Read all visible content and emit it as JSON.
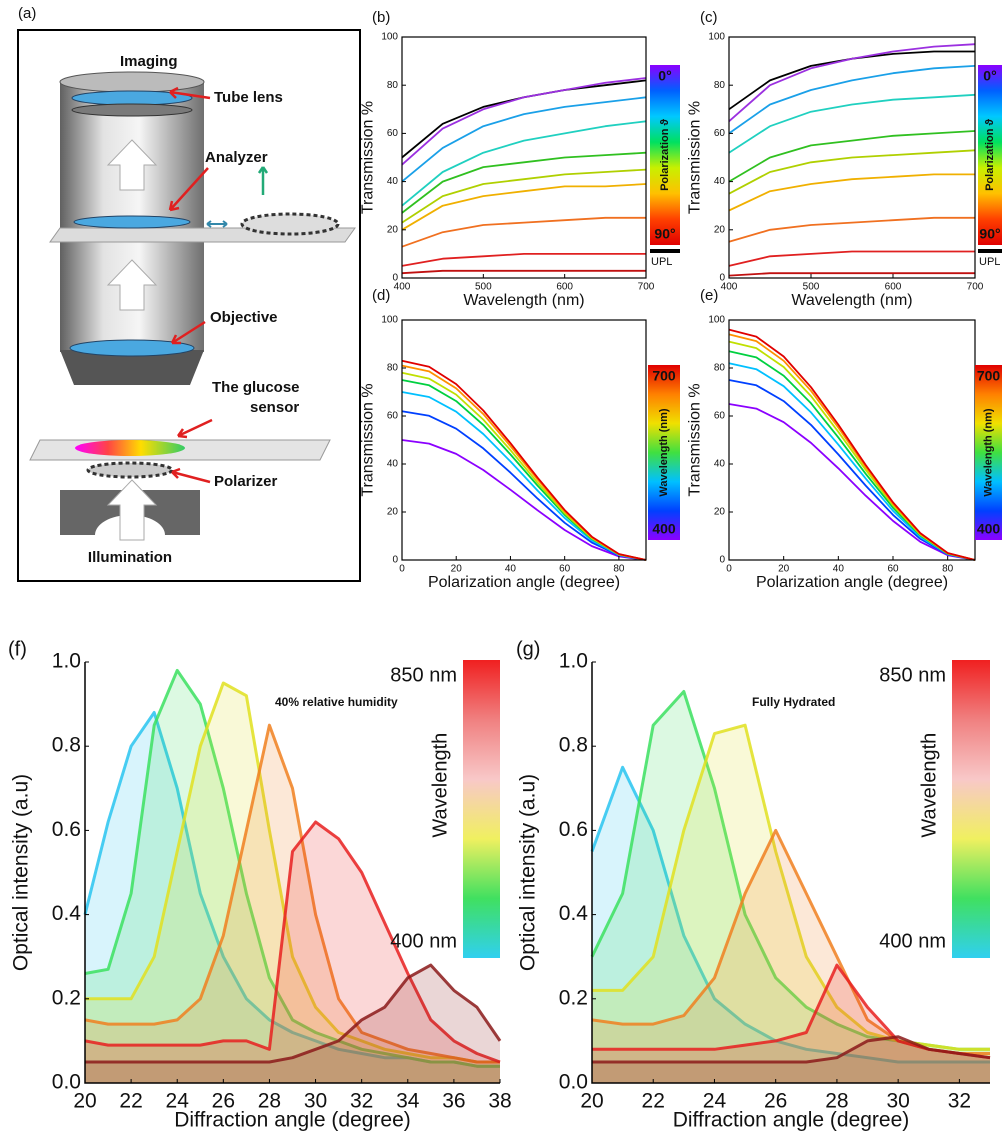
{
  "diagram": {
    "panel_label": "(a)",
    "imaging": "Imaging",
    "tube_lens": "Tube lens",
    "analyzer": "Analyzer",
    "objective": "Objective",
    "sensor": [
      "The glucose",
      "sensor"
    ],
    "polarizer": "Polarizer",
    "illumination": "Illumination"
  },
  "chart_data": [
    {
      "type": "line",
      "panel_label": "(b)",
      "x_label": "Wavelength (nm)",
      "y_label": "Transmission %",
      "x": [
        400,
        450,
        500,
        550,
        600,
        650,
        700
      ],
      "xlim": [
        400,
        700
      ],
      "xticks": [
        400,
        500,
        600,
        700
      ],
      "ylim": [
        0,
        100
      ],
      "yticks": [
        0,
        20,
        40,
        60,
        80,
        100
      ],
      "colorbar": {
        "top_label": "0°",
        "title": "Polarization ϑ",
        "bottom_label": "90°",
        "colors": [
          "#8b00ff",
          "#0060ff",
          "#00c8ff",
          "#00e060",
          "#c8f000",
          "#ffc000",
          "#ff4000",
          "#e00000"
        ]
      },
      "series": [
        {
          "name": "UPL",
          "color": "#000000",
          "values": [
            50,
            64,
            71,
            75,
            78,
            80,
            82
          ]
        },
        {
          "color": "#9b30e0",
          "values": [
            47,
            62,
            70,
            75,
            78,
            81,
            83
          ]
        },
        {
          "color": "#1aa0e8",
          "values": [
            40,
            54,
            63,
            68,
            71,
            73,
            75
          ]
        },
        {
          "color": "#20d0c0",
          "values": [
            30,
            44,
            52,
            57,
            60,
            63,
            65
          ]
        },
        {
          "color": "#30c020",
          "values": [
            27,
            40,
            46,
            48,
            50,
            51,
            52
          ]
        },
        {
          "color": "#b0d000",
          "values": [
            23,
            34,
            39,
            41,
            43,
            44,
            45
          ]
        },
        {
          "color": "#f0b000",
          "values": [
            20,
            30,
            34,
            36,
            38,
            38,
            39
          ]
        },
        {
          "color": "#f07020",
          "values": [
            13,
            19,
            22,
            23,
            24,
            25,
            25
          ]
        },
        {
          "color": "#e02020",
          "values": [
            5,
            8,
            9,
            10,
            10,
            10,
            10
          ]
        },
        {
          "color": "#c01010",
          "values": [
            2,
            3,
            3,
            3,
            3,
            3,
            3
          ]
        }
      ]
    },
    {
      "type": "line",
      "panel_label": "(c)",
      "x_label": "Wavelength (nm)",
      "y_label": "Transmission %",
      "x": [
        400,
        450,
        500,
        550,
        600,
        650,
        700
      ],
      "xlim": [
        400,
        700
      ],
      "xticks": [
        400,
        500,
        600,
        700
      ],
      "ylim": [
        0,
        100
      ],
      "yticks": [
        0,
        20,
        40,
        60,
        80,
        100
      ],
      "colorbar": {
        "top_label": "0°",
        "title": "Polarization ϑ",
        "bottom_label": "90°",
        "colors": [
          "#8b00ff",
          "#0060ff",
          "#00c8ff",
          "#00e060",
          "#c8f000",
          "#ffc000",
          "#ff4000",
          "#e00000"
        ]
      },
      "series": [
        {
          "name": "UPL",
          "color": "#000000",
          "values": [
            70,
            82,
            88,
            91,
            93,
            94,
            94
          ]
        },
        {
          "color": "#9b30e0",
          "values": [
            65,
            80,
            87,
            91,
            94,
            96,
            97
          ]
        },
        {
          "color": "#1aa0e8",
          "values": [
            60,
            72,
            78,
            82,
            85,
            87,
            88
          ]
        },
        {
          "color": "#20d0c0",
          "values": [
            52,
            63,
            69,
            72,
            74,
            75,
            76
          ]
        },
        {
          "color": "#30c020",
          "values": [
            40,
            50,
            55,
            57,
            59,
            60,
            61
          ]
        },
        {
          "color": "#b0d000",
          "values": [
            35,
            44,
            48,
            50,
            51,
            52,
            53
          ]
        },
        {
          "color": "#f0b000",
          "values": [
            28,
            36,
            39,
            41,
            42,
            43,
            43
          ]
        },
        {
          "color": "#f07020",
          "values": [
            15,
            20,
            22,
            23,
            24,
            25,
            25
          ]
        },
        {
          "color": "#e02020",
          "values": [
            5,
            9,
            10,
            11,
            11,
            11,
            11
          ]
        },
        {
          "color": "#c01010",
          "values": [
            1,
            2,
            2,
            2,
            2,
            2,
            2
          ]
        }
      ]
    },
    {
      "type": "line",
      "panel_label": "(d)",
      "x_label": "Polarization angle (degree)",
      "y_label": "Transmission %",
      "x": [
        0,
        10,
        20,
        30,
        40,
        50,
        60,
        70,
        80,
        90
      ],
      "xlim": [
        0,
        90
      ],
      "xticks": [
        0,
        20,
        40,
        60,
        80
      ],
      "ylim": [
        0,
        100
      ],
      "yticks": [
        0,
        20,
        40,
        60,
        80,
        100
      ],
      "colorbar": {
        "top_label": "700",
        "title": "Wavelength (nm)",
        "bottom_label": "400",
        "colors": [
          "#e00000",
          "#ff8000",
          "#f0e000",
          "#40e040",
          "#00c0ff",
          "#0040ff",
          "#8b00ff"
        ]
      },
      "series": [
        {
          "color": "#8b00ff",
          "values": [
            50,
            48.5,
            44.2,
            37.5,
            29.3,
            20.7,
            12.5,
            5.8,
            1.5,
            0
          ]
        },
        {
          "color": "#0040ff",
          "values": [
            62,
            60.1,
            54.7,
            46.5,
            36.4,
            25.6,
            15.5,
            7.3,
            1.9,
            0
          ]
        },
        {
          "color": "#00c0ff",
          "values": [
            70,
            67.9,
            61.8,
            52.5,
            41.1,
            28.9,
            17.5,
            8.2,
            2.1,
            0
          ]
        },
        {
          "color": "#00d040",
          "values": [
            75,
            72.8,
            66.2,
            56.3,
            44.0,
            31.0,
            18.8,
            8.8,
            2.3,
            0
          ]
        },
        {
          "color": "#c0e000",
          "values": [
            78,
            75.6,
            68.9,
            58.5,
            45.8,
            32.2,
            19.5,
            9.1,
            2.3,
            0
          ]
        },
        {
          "color": "#ff9000",
          "values": [
            81,
            78.6,
            71.5,
            60.8,
            47.5,
            33.5,
            20.3,
            9.5,
            2.4,
            0
          ]
        },
        {
          "color": "#e00000",
          "values": [
            83,
            80.5,
            73.3,
            62.3,
            48.7,
            34.3,
            20.8,
            9.7,
            2.5,
            0
          ]
        }
      ]
    },
    {
      "type": "line",
      "panel_label": "(e)",
      "x_label": "Polarization angle (degree)",
      "y_label": "Transmission %",
      "x": [
        0,
        10,
        20,
        30,
        40,
        50,
        60,
        70,
        80,
        90
      ],
      "xlim": [
        0,
        90
      ],
      "xticks": [
        0,
        20,
        40,
        60,
        80
      ],
      "ylim": [
        0,
        100
      ],
      "yticks": [
        0,
        20,
        40,
        60,
        80,
        100
      ],
      "colorbar": {
        "top_label": "700",
        "title": "Wavelength (nm)",
        "bottom_label": "400",
        "colors": [
          "#e00000",
          "#ff8000",
          "#f0e000",
          "#40e040",
          "#00c0ff",
          "#0040ff",
          "#8b00ff"
        ]
      },
      "series": [
        {
          "color": "#8b00ff",
          "values": [
            65,
            63.1,
            57.4,
            48.8,
            38.2,
            26.8,
            16.3,
            7.6,
            2.0,
            0
          ]
        },
        {
          "color": "#0040ff",
          "values": [
            75,
            72.8,
            66.2,
            56.3,
            44.0,
            31.0,
            18.8,
            8.8,
            2.3,
            0
          ]
        },
        {
          "color": "#00c0ff",
          "values": [
            82,
            79.5,
            72.4,
            61.5,
            48.1,
            33.9,
            20.5,
            9.6,
            2.5,
            0
          ]
        },
        {
          "color": "#00d040",
          "values": [
            87,
            84.4,
            76.8,
            65.3,
            51.1,
            35.9,
            21.8,
            10.2,
            2.6,
            0
          ]
        },
        {
          "color": "#c0e000",
          "values": [
            91,
            88.3,
            80.4,
            68.3,
            53.4,
            37.6,
            22.8,
            10.6,
            2.7,
            0
          ]
        },
        {
          "color": "#ff9000",
          "values": [
            94,
            91.2,
            83.0,
            70.5,
            55.2,
            38.8,
            23.5,
            11.0,
            2.8,
            0
          ]
        },
        {
          "color": "#e00000",
          "values": [
            96,
            93.1,
            84.8,
            72.0,
            56.4,
            39.6,
            24.0,
            11.2,
            2.9,
            0
          ]
        }
      ]
    },
    {
      "type": "area",
      "panel_label": "(f)",
      "x_label": "Diffraction angle (degree)",
      "y_label": "Optical intensity (a.u)",
      "annotation": "40% relative humidity",
      "x": [
        20,
        21,
        22,
        23,
        24,
        25,
        26,
        27,
        28,
        29,
        30,
        31,
        32,
        33,
        34,
        35,
        36,
        37,
        38
      ],
      "xlim": [
        20,
        38
      ],
      "xticks": [
        20,
        22,
        24,
        26,
        28,
        30,
        32,
        34,
        36,
        38
      ],
      "ylim": [
        0,
        1.0
      ],
      "yticks": [
        {
          "value": 0,
          "label": "0.0"
        },
        0.2,
        0.4,
        0.6,
        0.8,
        {
          "value": 1,
          "label": "1.0"
        }
      ],
      "colorbar": {
        "top_label": "850 nm",
        "title": "Wavelength",
        "bottom_label": "400 nm",
        "colors": [
          "#f02020",
          "#f08080",
          "#f8c8c8",
          "#f0f060",
          "#40e060",
          "#30d0f0"
        ]
      },
      "series": [
        {
          "color": "#29c4f0",
          "values": [
            0.4,
            0.62,
            0.8,
            0.88,
            0.7,
            0.45,
            0.3,
            0.2,
            0.15,
            0.12,
            0.1,
            0.08,
            0.07,
            0.06,
            0.06,
            0.05,
            0.05,
            0.04,
            0.04
          ]
        },
        {
          "color": "#3ce060",
          "values": [
            0.26,
            0.27,
            0.45,
            0.85,
            0.98,
            0.9,
            0.7,
            0.45,
            0.25,
            0.15,
            0.12,
            0.1,
            0.08,
            0.07,
            0.06,
            0.05,
            0.05,
            0.04,
            0.04
          ]
        },
        {
          "color": "#e0e020",
          "values": [
            0.2,
            0.2,
            0.2,
            0.3,
            0.55,
            0.8,
            0.95,
            0.92,
            0.6,
            0.3,
            0.18,
            0.12,
            0.1,
            0.08,
            0.07,
            0.06,
            0.06,
            0.05,
            0.05
          ]
        },
        {
          "color": "#f08020",
          "values": [
            0.15,
            0.14,
            0.14,
            0.14,
            0.15,
            0.2,
            0.35,
            0.6,
            0.85,
            0.7,
            0.4,
            0.2,
            0.12,
            0.1,
            0.08,
            0.07,
            0.06,
            0.05,
            0.05
          ]
        },
        {
          "color": "#e82020",
          "values": [
            0.1,
            0.09,
            0.09,
            0.09,
            0.09,
            0.09,
            0.1,
            0.1,
            0.08,
            0.55,
            0.62,
            0.58,
            0.5,
            0.38,
            0.26,
            0.15,
            0.1,
            0.07,
            0.05
          ]
        },
        {
          "color": "#8b1a1a",
          "values": [
            0.05,
            0.05,
            0.05,
            0.05,
            0.05,
            0.05,
            0.05,
            0.05,
            0.05,
            0.06,
            0.08,
            0.1,
            0.15,
            0.18,
            0.25,
            0.28,
            0.22,
            0.18,
            0.1
          ]
        }
      ]
    },
    {
      "type": "area",
      "panel_label": "(g)",
      "x_label": "Diffraction angle (degree)",
      "y_label": "Optical intensity (a.u)",
      "annotation": "Fully Hydrated",
      "x": [
        20,
        21,
        22,
        23,
        24,
        25,
        26,
        27,
        28,
        29,
        30,
        31,
        32,
        33
      ],
      "xlim": [
        20,
        33
      ],
      "xticks": [
        20,
        22,
        24,
        26,
        28,
        30,
        32
      ],
      "ylim": [
        0,
        1.0
      ],
      "yticks": [
        {
          "value": 0,
          "label": "0.0"
        },
        0.2,
        0.4,
        0.6,
        0.8,
        {
          "value": 1,
          "label": "1.0"
        }
      ],
      "colorbar": {
        "top_label": "850 nm",
        "title": "Wavelength",
        "bottom_label": "400 nm",
        "colors": [
          "#f02020",
          "#f08080",
          "#f8c8c8",
          "#f0f060",
          "#40e060",
          "#30d0f0"
        ]
      },
      "series": [
        {
          "color": "#29c4f0",
          "values": [
            0.55,
            0.75,
            0.6,
            0.35,
            0.2,
            0.14,
            0.1,
            0.08,
            0.07,
            0.06,
            0.05,
            0.05,
            0.05,
            0.05
          ]
        },
        {
          "color": "#3ce060",
          "values": [
            0.3,
            0.45,
            0.85,
            0.93,
            0.7,
            0.4,
            0.25,
            0.18,
            0.14,
            0.11,
            0.1,
            0.09,
            0.08,
            0.08
          ]
        },
        {
          "color": "#e0e020",
          "values": [
            0.22,
            0.22,
            0.3,
            0.6,
            0.83,
            0.85,
            0.55,
            0.3,
            0.18,
            0.12,
            0.1,
            0.09,
            0.08,
            0.08
          ]
        },
        {
          "color": "#f08020",
          "values": [
            0.15,
            0.14,
            0.14,
            0.16,
            0.25,
            0.45,
            0.6,
            0.45,
            0.3,
            0.15,
            0.1,
            0.08,
            0.07,
            0.07
          ]
        },
        {
          "color": "#e82020",
          "values": [
            0.08,
            0.08,
            0.08,
            0.08,
            0.08,
            0.09,
            0.1,
            0.12,
            0.28,
            0.18,
            0.1,
            0.08,
            0.07,
            0.06
          ]
        },
        {
          "color": "#8b1a1a",
          "values": [
            0.05,
            0.05,
            0.05,
            0.05,
            0.05,
            0.05,
            0.05,
            0.05,
            0.06,
            0.1,
            0.11,
            0.08,
            0.07,
            0.06
          ]
        }
      ]
    }
  ]
}
